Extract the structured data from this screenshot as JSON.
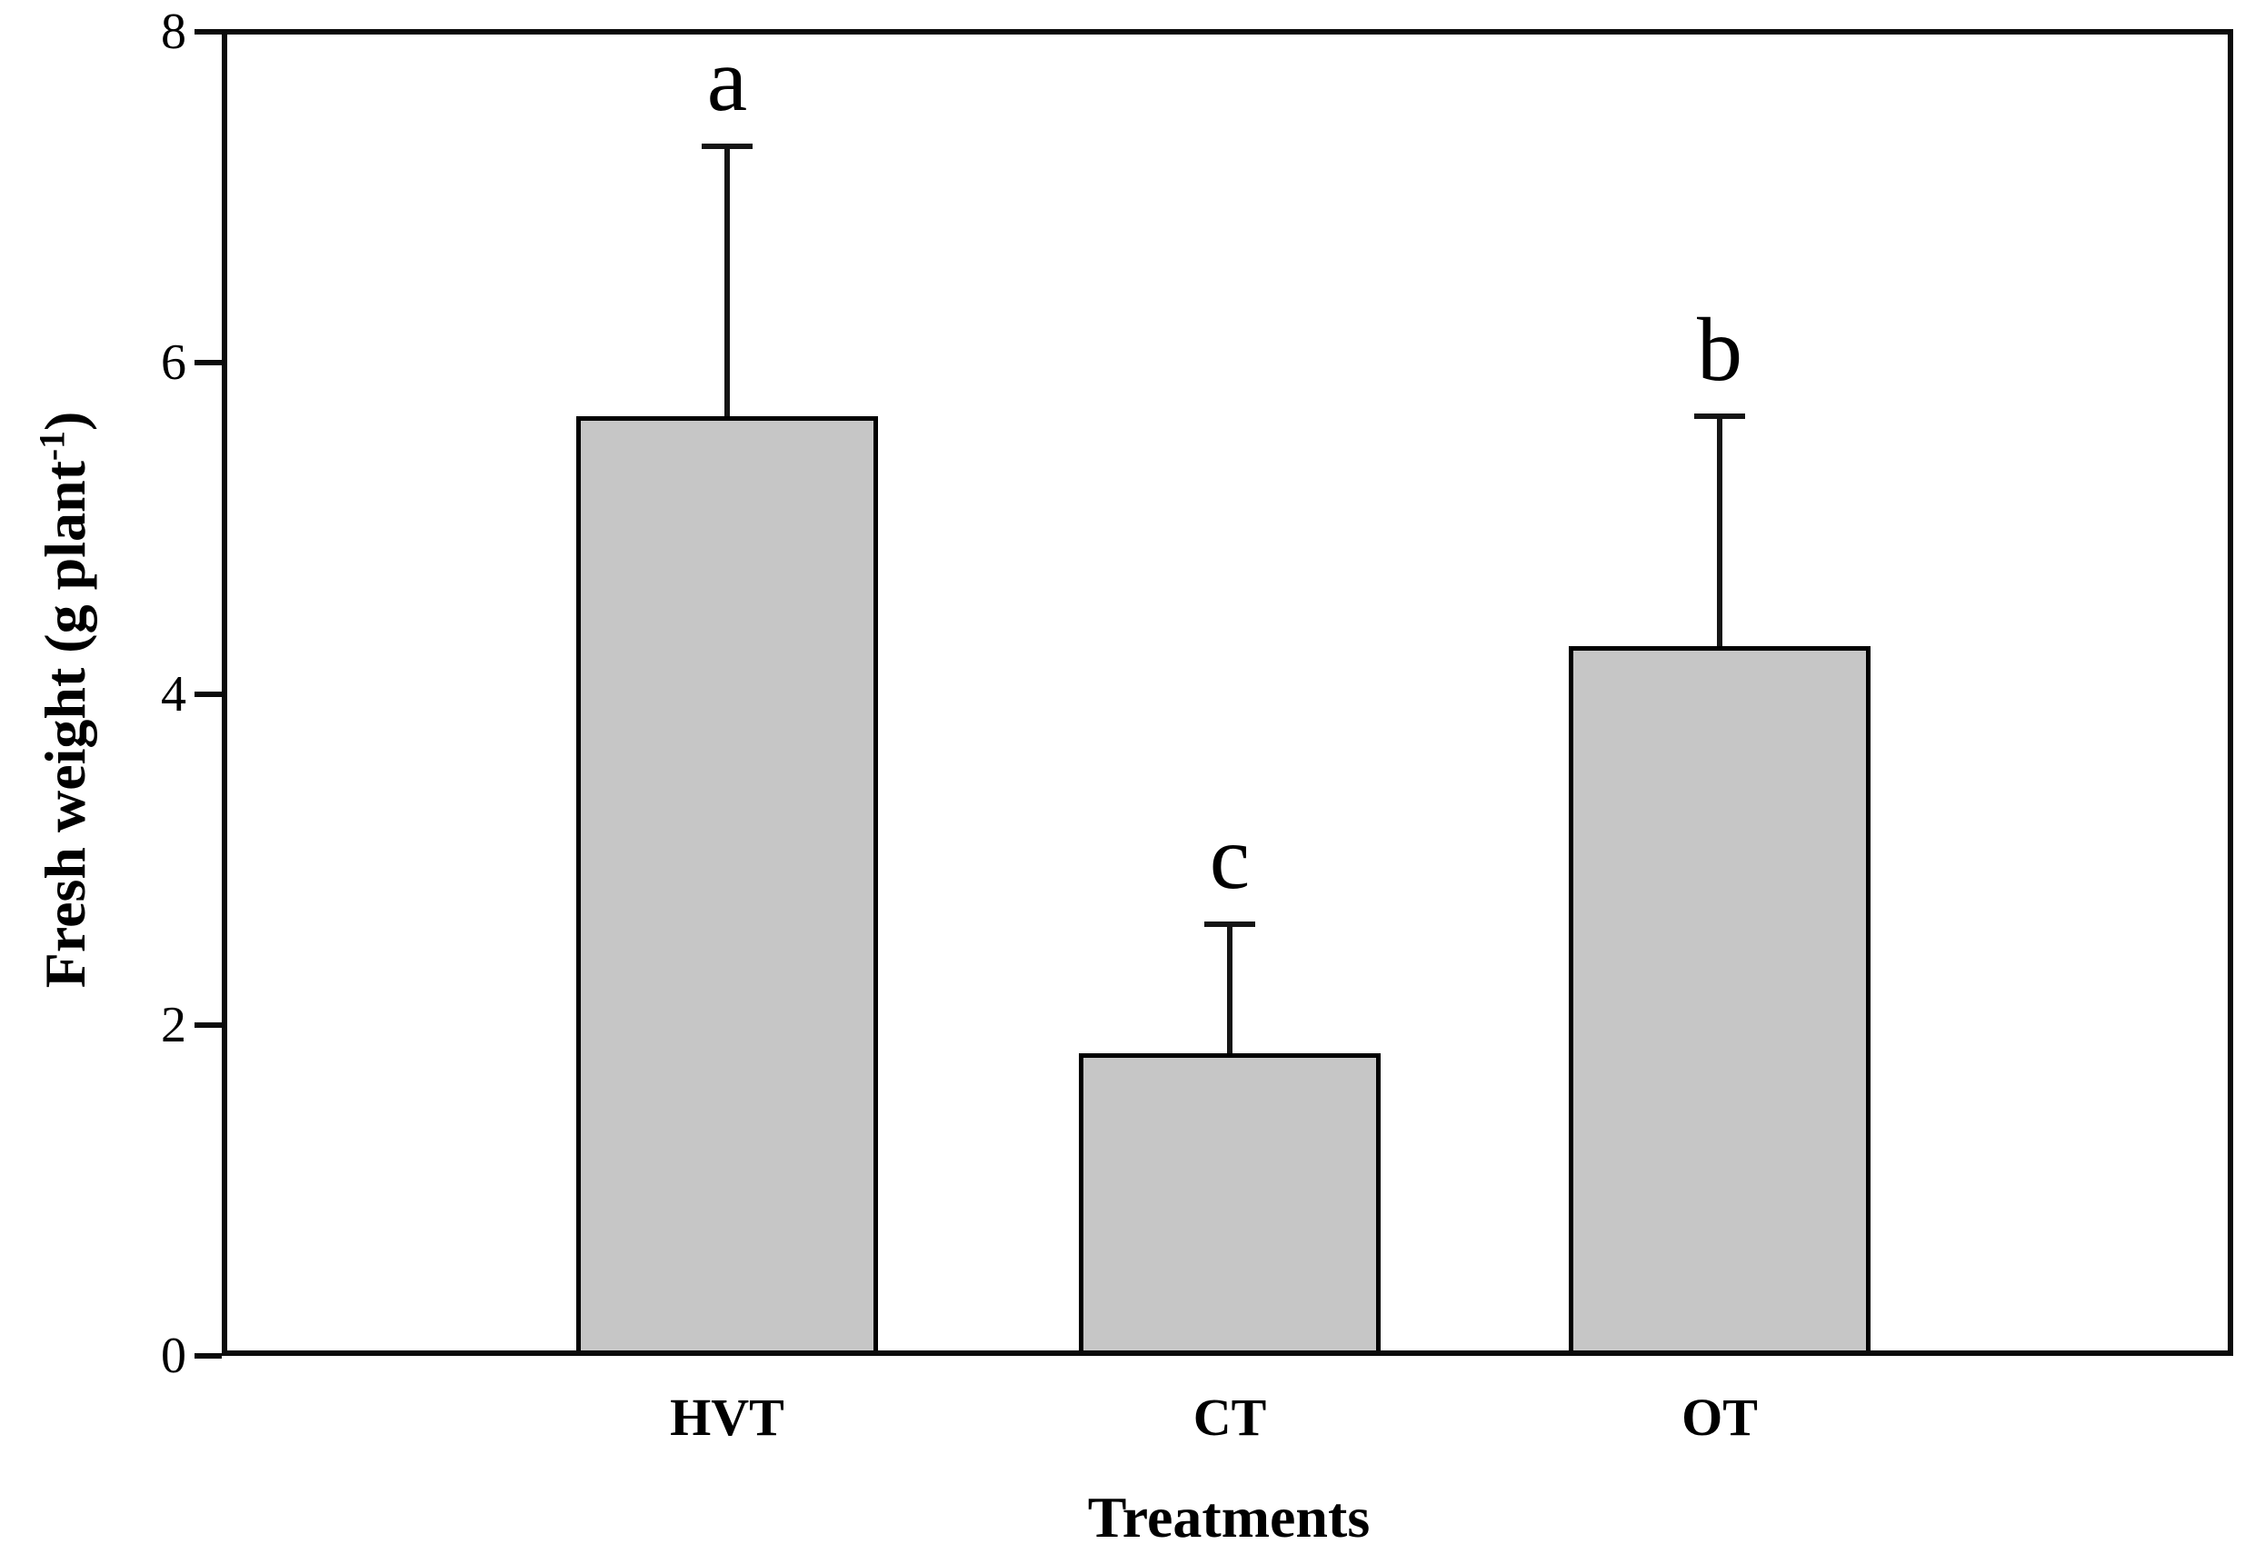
{
  "figure": {
    "background": "#ffffff",
    "axis_color": "#0b0b0b",
    "text_color": "#000000"
  },
  "chart_data": {
    "type": "bar",
    "title": "",
    "xlabel": "Treatments",
    "ylabel": "Fresh weight (g plant⁻¹)",
    "ylabel_parts": {
      "prefix": "Fresh weight (g plant",
      "superscript": "-1",
      "suffix": ")"
    },
    "categories": [
      "HVT",
      "CT",
      "OT"
    ],
    "values": [
      5.68,
      1.83,
      4.29
    ],
    "error_plus": [
      1.63,
      0.78,
      1.39
    ],
    "error_bar_tops": [
      7.31,
      2.61,
      5.68
    ],
    "sig_letters": [
      "a",
      "c",
      "b"
    ],
    "ylim": [
      0,
      8
    ],
    "yticks": [
      0,
      2,
      4,
      6,
      8
    ],
    "grid": false,
    "legend": "none",
    "bar_fill": "#c6c6c6",
    "bar_edge": "#000000",
    "error_bar_direction": "up-only"
  }
}
